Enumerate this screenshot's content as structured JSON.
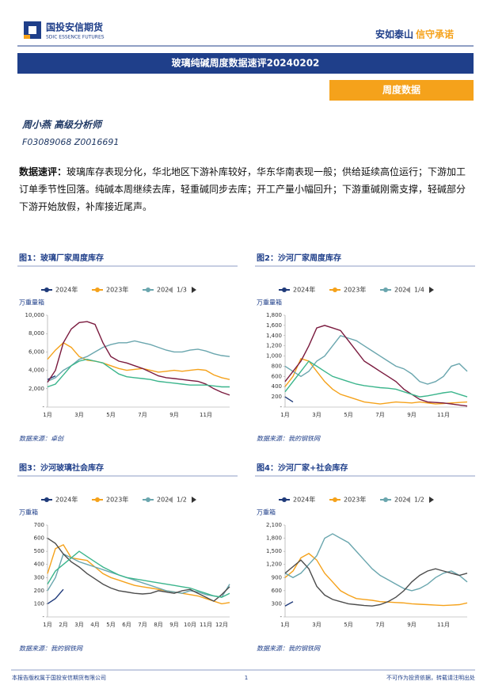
{
  "header": {
    "logo_cn": "国投安信期货",
    "logo_en": "SDIC ESSENCE FUTURES",
    "slogan_1": "安如泰山",
    "slogan_2": "信守承诺",
    "title": "玻璃纯碱周度数据速评20240202",
    "section": "周度数据"
  },
  "author": {
    "name": "周小燕 高级分析师",
    "ids": "F03089068 Z0016691"
  },
  "summary": {
    "label": "数据速评：",
    "text": "玻璃库存表现分化，华北地区下游补库较好，华东华南表现一般；供给延续高位运行；下游加工订单季节性回落。纯碱本周继续去库，轻重碱同步去库；开工产量小幅回升；下游重碱刚需支撑，轻碱部分下游开始放假，补库接近尾声。"
  },
  "chart_data": [
    {
      "type": "line",
      "title": "图1：玻璃厂家周度库存",
      "y_label": "万重量箱",
      "legend_page": "1/3",
      "source": "数据来源：卓创",
      "categories": [
        "1月",
        null,
        null,
        null,
        "3月",
        null,
        null,
        null,
        "5月",
        null,
        null,
        null,
        "7月",
        null,
        null,
        null,
        "9月",
        null,
        null,
        null,
        "11月",
        null,
        null,
        null
      ],
      "ylim": [
        0,
        10000
      ],
      "yticks": [
        {
          "value": 0,
          "label": "-"
        },
        {
          "value": 2000,
          "label": "2,000"
        },
        {
          "value": 4000,
          "label": "4,000"
        },
        {
          "value": 6000,
          "label": "6,000"
        },
        {
          "value": 8000,
          "label": "8,000"
        },
        {
          "value": 10000,
          "label": "10,000"
        }
      ],
      "series": [
        {
          "name": "2024年",
          "color": "#1f3a7a",
          "values": [
            3000,
            3400,
            null,
            null,
            null,
            null,
            null,
            null,
            null,
            null,
            null,
            null,
            null,
            null,
            null,
            null,
            null,
            null,
            null,
            null,
            null,
            null,
            null,
            null
          ]
        },
        {
          "name": "2023年",
          "color": "#f5a21b",
          "values": [
            5200,
            6200,
            7000,
            6500,
            5500,
            5100,
            5000,
            4800,
            4500,
            4200,
            4000,
            4100,
            4200,
            4000,
            3800,
            3900,
            4000,
            3900,
            4000,
            4100,
            4000,
            3500,
            3200,
            3000
          ]
        },
        {
          "name": "202",
          "color": "#6aa6ae",
          "values": [
            2800,
            3200,
            4000,
            4500,
            5200,
            5500,
            6000,
            6500,
            6800,
            7000,
            7000,
            7200,
            7000,
            6800,
            6500,
            6200,
            6000,
            6000,
            6200,
            6300,
            6100,
            5800,
            5600,
            5500
          ]
        },
        {
          "color": "#7a1a3e",
          "values": [
            2700,
            4000,
            7000,
            8500,
            9200,
            9300,
            9000,
            7000,
            5500,
            5000,
            4800,
            4500,
            4200,
            3800,
            3400,
            3200,
            3100,
            3000,
            2900,
            2800,
            2500,
            2000,
            1600,
            1300
          ]
        },
        {
          "color": "#3bb58c",
          "values": [
            2200,
            2500,
            3500,
            4500,
            5000,
            5200,
            5000,
            4800,
            4200,
            3600,
            3300,
            3200,
            3100,
            3000,
            2800,
            2700,
            2600,
            2500,
            2400,
            2400,
            2400,
            2300,
            2200,
            2200
          ]
        }
      ]
    },
    {
      "type": "line",
      "title": "图2：沙河厂家周度库存",
      "y_label": "万重量箱",
      "legend_page": "1/4",
      "source": "数据来源：我的钢铁网",
      "categories": [
        "1月",
        null,
        null,
        null,
        "3月",
        null,
        null,
        null,
        "5月",
        null,
        null,
        null,
        "7月",
        null,
        null,
        null,
        "9月",
        null,
        null,
        null,
        "11月",
        null,
        null,
        null
      ],
      "ylim": [
        0,
        1800
      ],
      "yticks": [
        {
          "value": 0,
          "label": "-"
        },
        200,
        400,
        600,
        800,
        {
          "value": 1000,
          "label": "1,000"
        },
        {
          "value": 1200,
          "label": "1,200"
        },
        {
          "value": 1400,
          "label": "1,400"
        },
        {
          "value": 1600,
          "label": "1,600"
        },
        {
          "value": 1800,
          "label": "1,800"
        }
      ],
      "series": [
        {
          "name": "2024年",
          "color": "#1f3a7a",
          "values": [
            200,
            100,
            null,
            null,
            null,
            null,
            null,
            null,
            null,
            null,
            null,
            null,
            null,
            null,
            null,
            null,
            null,
            null,
            null,
            null,
            null,
            null,
            null,
            null
          ]
        },
        {
          "name": "2023年",
          "color": "#f5a21b",
          "values": [
            400,
            600,
            950,
            900,
            700,
            500,
            350,
            250,
            200,
            150,
            100,
            80,
            60,
            80,
            100,
            90,
            80,
            100,
            80,
            60,
            70,
            80,
            90,
            100
          ]
        },
        {
          "name": "202",
          "color": "#6aa6ae",
          "values": [
            800,
            700,
            600,
            700,
            900,
            1000,
            1200,
            1400,
            1350,
            1300,
            1200,
            1100,
            1000,
            900,
            800,
            750,
            650,
            500,
            450,
            500,
            600,
            800,
            850,
            700
          ]
        },
        {
          "color": "#7a1a3e",
          "values": [
            500,
            700,
            900,
            1200,
            1550,
            1600,
            1550,
            1500,
            1300,
            1100,
            900,
            800,
            700,
            600,
            500,
            350,
            250,
            150,
            100,
            90,
            80,
            60,
            40,
            20
          ]
        },
        {
          "color": "#3bb58c",
          "values": [
            300,
            500,
            700,
            900,
            800,
            700,
            600,
            550,
            500,
            450,
            420,
            400,
            380,
            370,
            350,
            300,
            250,
            200,
            220,
            250,
            280,
            300,
            250,
            200
          ]
        }
      ]
    },
    {
      "type": "line",
      "title": "图3：沙河玻璃社会库存",
      "y_label": "万重箱",
      "legend_page": "1/2",
      "source": "数据来源：我的钢铁网",
      "categories": [
        "1月",
        null,
        "2月",
        null,
        "3月",
        null,
        "4月",
        null,
        "5月",
        null,
        "6月",
        null,
        "7月",
        null,
        "8月",
        null,
        "9月",
        null,
        "10月",
        null,
        "11月",
        null,
        "12月",
        null
      ],
      "ylim": [
        0,
        700
      ],
      "yticks": [
        {
          "value": 0,
          "label": "-"
        },
        100,
        200,
        300,
        400,
        500,
        600,
        700
      ],
      "series": [
        {
          "name": "2024年",
          "color": "#1f3a7a",
          "values": [
            100,
            140,
            210,
            null,
            null,
            null,
            null,
            null,
            null,
            null,
            null,
            null,
            null,
            null,
            null,
            null,
            null,
            null,
            null,
            null,
            null,
            null,
            null,
            null
          ]
        },
        {
          "name": "2023年",
          "color": "#f5a21b",
          "values": [
            330,
            520,
            550,
            450,
            440,
            430,
            380,
            330,
            300,
            280,
            260,
            240,
            230,
            220,
            210,
            200,
            190,
            180,
            170,
            160,
            140,
            120,
            100,
            110
          ]
        },
        {
          "name": "202",
          "color": "#6aa6ae",
          "values": [
            200,
            300,
            480,
            450,
            420,
            400,
            380,
            360,
            340,
            320,
            300,
            280,
            260,
            240,
            220,
            200,
            190,
            180,
            200,
            190,
            170,
            160,
            150,
            250
          ]
        },
        {
          "color": "#4d4d4d",
          "values": [
            600,
            560,
            480,
            420,
            380,
            330,
            290,
            250,
            220,
            200,
            190,
            180,
            175,
            180,
            200,
            190,
            180,
            200,
            210,
            180,
            150,
            120,
            170,
            230
          ]
        },
        {
          "color": "#3bb58c",
          "values": [
            250,
            350,
            400,
            450,
            500,
            460,
            420,
            380,
            350,
            320,
            300,
            290,
            280,
            270,
            260,
            250,
            240,
            230,
            220,
            200,
            180,
            160,
            150,
            180
          ]
        }
      ]
    },
    {
      "type": "line",
      "title": "图4：沙河厂家+社会库存",
      "y_label": "万重箱",
      "legend_page": "1/2",
      "source": "数据来源：我的钢铁网",
      "categories": [
        "1月",
        null,
        null,
        null,
        "3月",
        null,
        null,
        null,
        "5月",
        null,
        null,
        null,
        "7月",
        null,
        null,
        null,
        "9月",
        null,
        null,
        null,
        "11月",
        null,
        null,
        null
      ],
      "ylim": [
        0,
        2100
      ],
      "yticks": [
        {
          "value": 0,
          "label": "-"
        },
        300,
        600,
        900,
        {
          "value": 1200,
          "label": "1,200"
        },
        {
          "value": 1500,
          "label": "1,500"
        },
        {
          "value": 1800,
          "label": "1,800"
        },
        {
          "value": 2100,
          "label": "2,100"
        }
      ],
      "series": [
        {
          "name": "2024年",
          "color": "#1f3a7a",
          "values": [
            250,
            350,
            null,
            null,
            null,
            null,
            null,
            null,
            null,
            null,
            null,
            null,
            null,
            null,
            null,
            null,
            null,
            null,
            null,
            null,
            null,
            null,
            null,
            null
          ]
        },
        {
          "name": "2023年",
          "color": "#f5a21b",
          "values": [
            900,
            1050,
            1350,
            1450,
            1300,
            1000,
            800,
            600,
            500,
            420,
            400,
            380,
            350,
            340,
            330,
            320,
            300,
            290,
            280,
            270,
            260,
            270,
            280,
            320
          ]
        },
        {
          "name": "202",
          "color": "#6aa6ae",
          "values": [
            1000,
            900,
            1000,
            1200,
            1400,
            1800,
            1900,
            1800,
            1700,
            1500,
            1300,
            1100,
            950,
            850,
            750,
            650,
            600,
            650,
            750,
            900,
            1000,
            1050,
            950,
            800
          ]
        },
        {
          "color": "#4d4d4d",
          "values": [
            1000,
            1150,
            1300,
            1100,
            700,
            500,
            400,
            350,
            300,
            280,
            260,
            250,
            280,
            350,
            450,
            600,
            800,
            950,
            1050,
            1100,
            1050,
            1000,
            950,
            1000
          ]
        }
      ]
    }
  ],
  "footer": {
    "left": "本报告版权属于国投安信期货有限公司",
    "page": "1",
    "right": "不可作为投资依据，转载请注明出处"
  }
}
